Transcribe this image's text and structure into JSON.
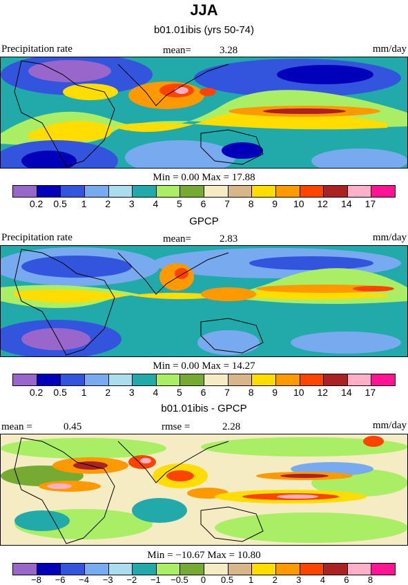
{
  "header": {
    "season": "JJA"
  },
  "colors_abs": [
    "#9966cc",
    "#0000bb",
    "#3355dd",
    "#77aaee",
    "#aaddee",
    "#22aaaa",
    "#aaee66",
    "#77aa33",
    "#f5ecc4",
    "#d9b68a",
    "#ffdd00",
    "#ff9900",
    "#ff4400",
    "#aa2222",
    "#ffb0c8",
    "#ff1493"
  ],
  "colors_diff": [
    "#9966cc",
    "#0000bb",
    "#3355dd",
    "#77aaee",
    "#aaddee",
    "#22aaaa",
    "#aaee66",
    "#77aa33",
    "#f5ecc4",
    "#d9b68a",
    "#ffdd00",
    "#ff9900",
    "#ff4400",
    "#aa2222",
    "#ffb0c8",
    "#ff1493"
  ],
  "panels": [
    {
      "subtitle": "b01.01ibis (yrs 50-74)",
      "var_label": "Precipitation rate",
      "mean_label": "mean=",
      "mean_value": "3.28",
      "units": "mm/day",
      "min_label": "Min =",
      "min_value": "0.00",
      "max_label": "Max =",
      "max_value": "17.88",
      "ticks": [
        "0.2",
        "0.5",
        "1",
        "2",
        "3",
        "4",
        "5",
        "6",
        "7",
        "8",
        "9",
        "10",
        "12",
        "14",
        "17"
      ]
    },
    {
      "subtitle": "GPCP",
      "var_label": "Precipitation rate",
      "mean_label": "mean=",
      "mean_value": "2.83",
      "units": "mm/day",
      "min_label": "Min =",
      "min_value": "0.00",
      "max_label": "Max =",
      "max_value": "14.27",
      "ticks": [
        "0.2",
        "0.5",
        "1",
        "2",
        "3",
        "4",
        "5",
        "6",
        "7",
        "8",
        "9",
        "10",
        "12",
        "14",
        "17"
      ]
    },
    {
      "subtitle": "b01.01ibis - GPCP",
      "mean_label": "mean =",
      "mean_value": "0.45",
      "rmse_label": "rmse =",
      "rmse_value": "2.28",
      "units": "mm/day",
      "min_label": "Min =",
      "min_value": "−10.67",
      "max_label": "Max =",
      "max_value": "10.80",
      "ticks": [
        "−8",
        "−6",
        "−4",
        "−3",
        "−2",
        "−1",
        "−0.5",
        "0",
        "0.5",
        "1",
        "2",
        "3",
        "4",
        "6",
        "8"
      ]
    }
  ]
}
